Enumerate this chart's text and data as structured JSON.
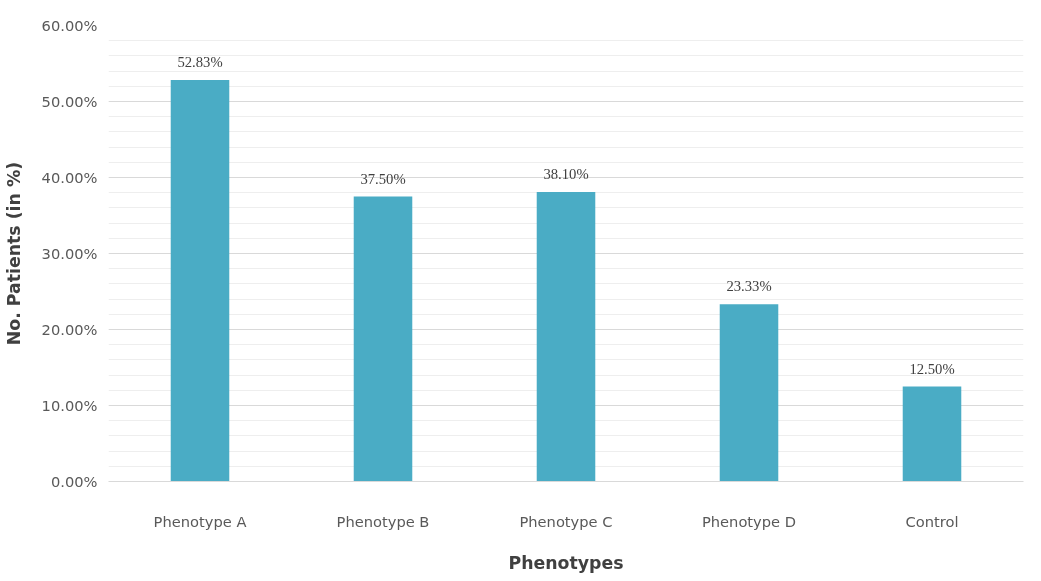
{
  "chart_data": {
    "type": "bar",
    "xlabel": "Phenotypes",
    "ylabel": "No. Patients (in %)",
    "categories": [
      "Phenotype A",
      "Phenotype B",
      "Phenotype C",
      "Phenotype D",
      "Control"
    ],
    "values": [
      52.83,
      37.5,
      38.1,
      23.33,
      12.5
    ],
    "value_labels": [
      "52.83%",
      "37.50%",
      "38.10%",
      "23.33%",
      "12.50%"
    ],
    "color": "#4aacc5",
    "ylim": [
      0,
      60
    ],
    "yticks": [
      {
        "value": 0,
        "label": "0.00%"
      },
      {
        "value": 10,
        "label": "10.00%"
      },
      {
        "value": 20,
        "label": "20.00%"
      },
      {
        "value": 30,
        "label": "30.00%"
      },
      {
        "value": 40,
        "label": "40.00%"
      },
      {
        "value": 50,
        "label": "50.00%"
      },
      {
        "value": 60,
        "label": "60.00%"
      }
    ],
    "grid": "y"
  }
}
